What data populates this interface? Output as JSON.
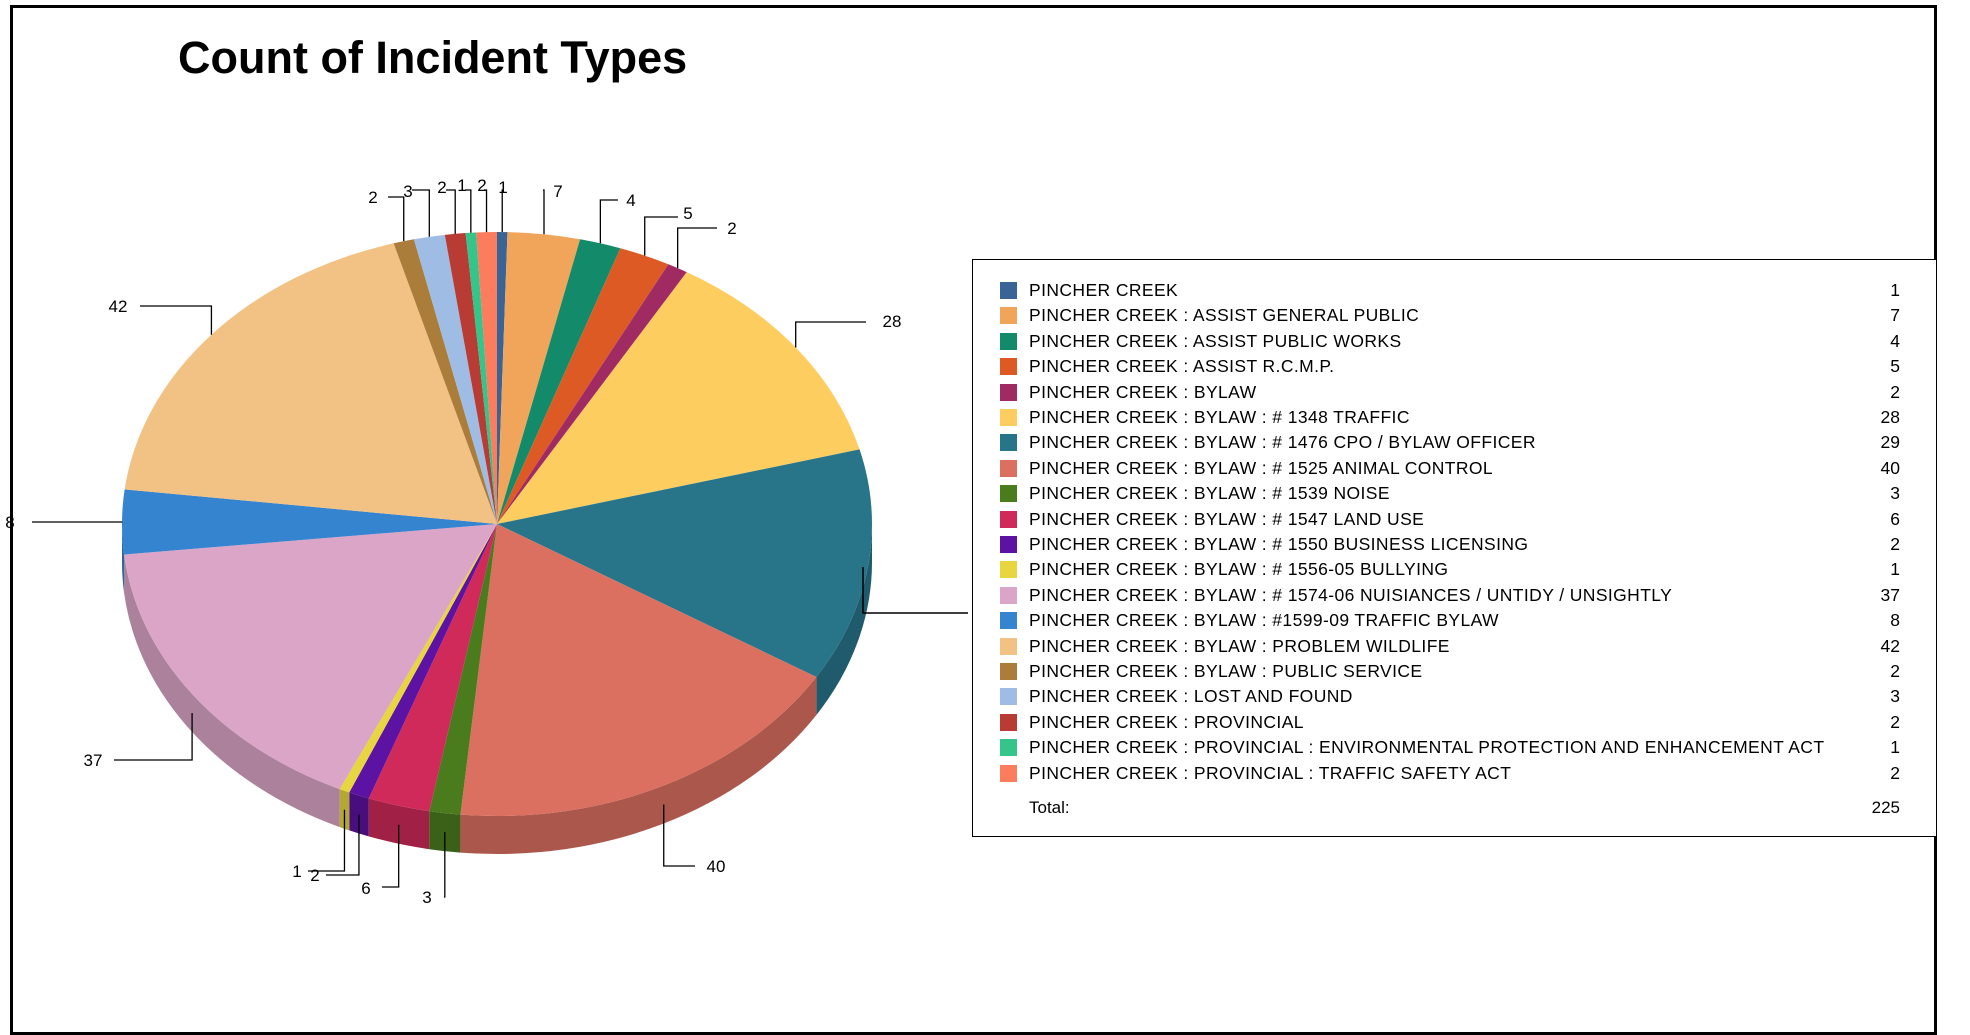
{
  "chart_data": {
    "type": "pie",
    "title": "Count of Incident Types",
    "slices": [
      {
        "label": "PINCHER CREEK",
        "value": 1,
        "color": "#3a6396"
      },
      {
        "label": "PINCHER CREEK : ASSIST GENERAL PUBLIC",
        "value": 7,
        "color": "#f0a55a"
      },
      {
        "label": "PINCHER CREEK : ASSIST PUBLIC WORKS",
        "value": 4,
        "color": "#138a6a"
      },
      {
        "label": "PINCHER CREEK : ASSIST R.C.M.P.",
        "value": 5,
        "color": "#de5a24"
      },
      {
        "label": "PINCHER CREEK : BYLAW",
        "value": 2,
        "color": "#a02b63"
      },
      {
        "label": "PINCHER CREEK : BYLAW : # 1348 TRAFFIC",
        "value": 28,
        "color": "#fdcd60"
      },
      {
        "label": "PINCHER CREEK : BYLAW : # 1476 CPO / BYLAW OFFICER",
        "value": 29,
        "color": "#28758a"
      },
      {
        "label": "PINCHER CREEK : BYLAW : # 1525 ANIMAL CONTROL",
        "value": 40,
        "color": "#dc7060"
      },
      {
        "label": "PINCHER CREEK : BYLAW : # 1539 NOISE",
        "value": 3,
        "color": "#4a7c1e"
      },
      {
        "label": "PINCHER CREEK : BYLAW : # 1547 LAND USE",
        "value": 6,
        "color": "#cf2a5a"
      },
      {
        "label": "PINCHER CREEK : BYLAW : # 1550 BUSINESS LICENSING",
        "value": 2,
        "color": "#5c12a2"
      },
      {
        "label": "PINCHER CREEK : BYLAW : # 1556-05 BULLYING",
        "value": 1,
        "color": "#e7d640"
      },
      {
        "label": "PINCHER CREEK : BYLAW : # 1574-06 NUISIANCES / UNTIDY / UNSIGHTLY",
        "value": 37,
        "color": "#dba5c8"
      },
      {
        "label": "PINCHER CREEK : BYLAW : #1599-09 TRAFFIC BYLAW",
        "value": 8,
        "color": "#3584d0"
      },
      {
        "label": "PINCHER CREEK : BYLAW : PROBLEM WILDLIFE",
        "value": 42,
        "color": "#f2c285"
      },
      {
        "label": "PINCHER CREEK : BYLAW : PUBLIC SERVICE",
        "value": 2,
        "color": "#ab7d3a"
      },
      {
        "label": "PINCHER CREEK : LOST AND FOUND",
        "value": 3,
        "color": "#9fbde4"
      },
      {
        "label": "PINCHER CREEK : PROVINCIAL",
        "value": 2,
        "color": "#b83c34"
      },
      {
        "label": "PINCHER CREEK : PROVINCIAL : ENVIRONMENTAL PROTECTION AND ENHANCEMENT ACT",
        "value": 1,
        "color": "#35c58a"
      },
      {
        "label": "PINCHER CREEK : PROVINCIAL : TRAFFIC SAFETY ACT",
        "value": 2,
        "color": "#fc7c5e"
      }
    ],
    "total_label": "Total:",
    "total_value": 225,
    "legend_position": "right",
    "style": "3d"
  }
}
